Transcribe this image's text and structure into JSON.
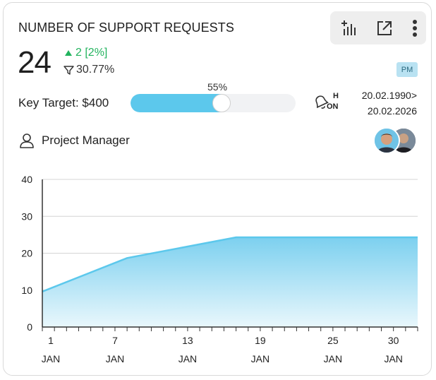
{
  "card": {
    "title": "NUMBER OF SUPPORT REQUESTS",
    "toolbar": {
      "items": [
        "chart-settings-icon",
        "open-external-icon",
        "more-vertical-icon"
      ]
    },
    "metric": {
      "value": "24",
      "delta": "2 [2%]",
      "delta_color": "#22b35e",
      "filter_value": "30.77%"
    },
    "badge": "PM",
    "key_target": {
      "label": "Key Target: $400",
      "progress_label": "55%",
      "progress_fraction": 0.55,
      "fill_color": "#5cc8ec"
    },
    "alert": {
      "h_label": "H",
      "on_label": "ON"
    },
    "date_range": {
      "start": "20.02.1990>",
      "end": "20.02.2026"
    },
    "role": "Project Manager"
  },
  "chart_data": {
    "type": "area",
    "x": [
      1,
      8,
      17,
      30
    ],
    "y": [
      9.6,
      18.7,
      24.3,
      24.3
    ],
    "xticks": [
      "1",
      "7",
      "13",
      "19",
      "25",
      "30"
    ],
    "xtick_values": [
      1,
      7,
      13,
      19,
      25,
      30
    ],
    "xtick_sublabel": "JAN",
    "yticks": [
      "0",
      "10",
      "20",
      "30",
      "40"
    ],
    "ylim": [
      0,
      40
    ],
    "xlim": [
      1,
      32
    ],
    "grid": true,
    "color": "#5cc8ec"
  }
}
